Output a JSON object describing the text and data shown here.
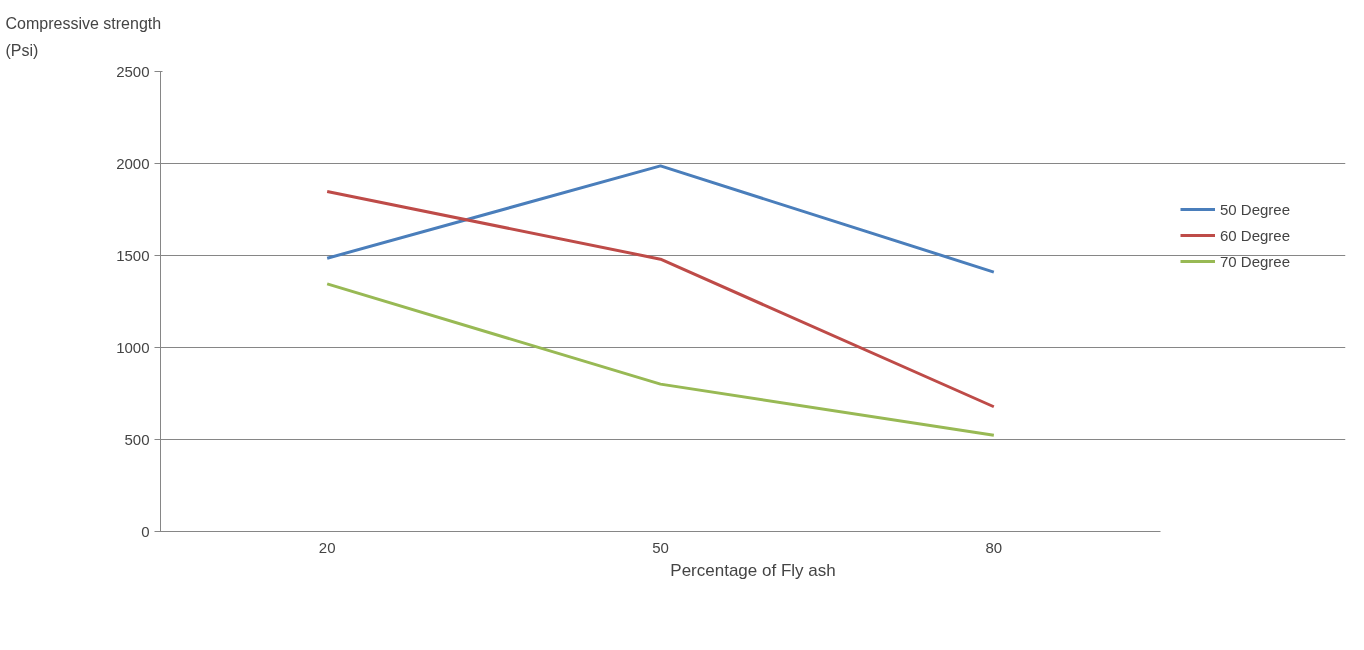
{
  "chart_data": {
    "type": "line",
    "categories": [
      "20",
      "50",
      "80"
    ],
    "xlabel": "Percentage of Fly ash",
    "ylabel": "Compressive strength\n(Psi)",
    "ylim": [
      0,
      2500
    ],
    "yticks": [
      0,
      500,
      1000,
      1500,
      2000,
      2500
    ],
    "grid": "y",
    "legend": "right",
    "marker": "none",
    "line_style": "solid",
    "series": [
      {
        "name": "50 Degree",
        "color": "#4a7ebb",
        "values": [
          1485,
          1987,
          1410
        ]
      },
      {
        "name": "60 Degree",
        "color": "#be4b48",
        "values": [
          1848,
          1480,
          678
        ]
      },
      {
        "name": "70 Degree",
        "color": "#98b954",
        "values": [
          1346,
          801,
          523
        ]
      }
    ]
  }
}
